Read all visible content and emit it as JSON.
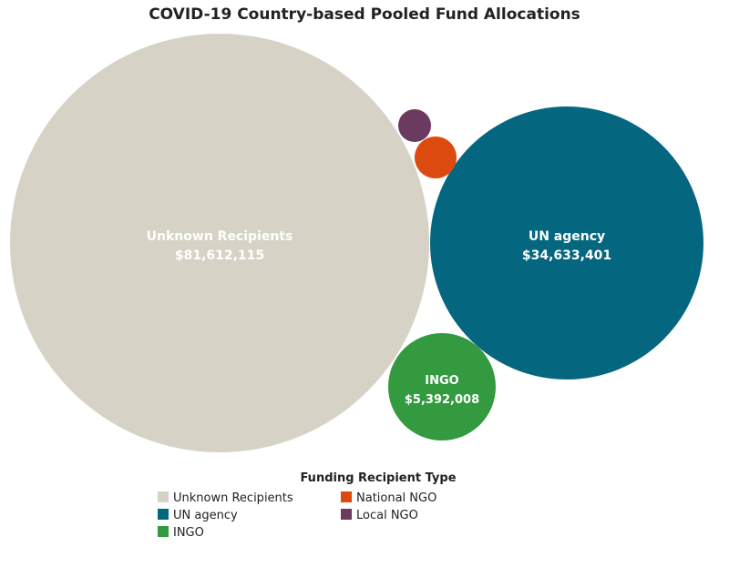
{
  "chart_data": {
    "type": "bubble",
    "title": "COVID-19 Country-based Pooled Fund Allocations",
    "legend_title": "Funding Recipient Type",
    "series": [
      {
        "name": "Unknown Recipients",
        "label": "Unknown Recipients",
        "value_label": "$81,612,115",
        "value": 81612115,
        "color": "#d6d3c6"
      },
      {
        "name": "UN agency",
        "label": "UN agency",
        "value_label": "$34,633,401",
        "value": 34633401,
        "color": "#05677f"
      },
      {
        "name": "INGO",
        "label": "INGO",
        "value_label": "$5,392,008",
        "value": 5392008,
        "color": "#339a3f"
      },
      {
        "name": "National NGO",
        "label": "",
        "value_label": "",
        "value": null,
        "color": "#dd4a10"
      },
      {
        "name": "Local NGO",
        "label": "",
        "value_label": "",
        "value": null,
        "color": "#6a3a5f"
      }
    ]
  }
}
